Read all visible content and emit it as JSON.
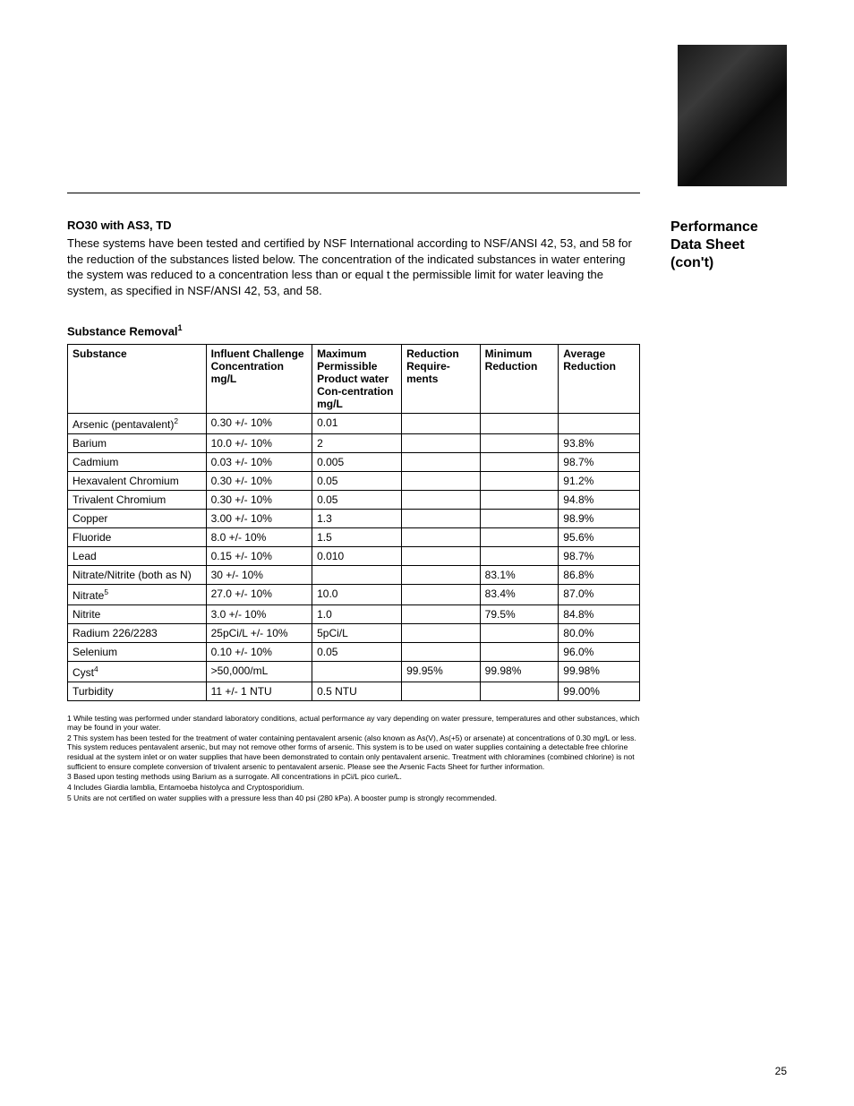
{
  "sidebar": {
    "title_line1": "Performance",
    "title_line2": "Data Sheet",
    "title_line3": "(con't)"
  },
  "main": {
    "section_title": "RO30 with AS3, TD",
    "intro": "These systems have been tested and certified by NSF International according to NSF/ANSI 42, 53, and 58 for the reduction of the substances listed below. The concentration of the indicated substances in water entering the system was reduced to a concentration less than or equal t the permissible limit for water leaving the system, as specified in NSF/ANSI 42, 53, and 58.",
    "table_title": "Substance Removal",
    "table_title_sup": "1",
    "columns": {
      "substance": "Substance",
      "influent": "Influent Challenge Concentration mg/L",
      "maximum": "Maximum Permissible Product water Con-centration mg/L",
      "reduction_req": "Reduction Require-ments",
      "minimum": "Minimum Reduction",
      "average": "Average Reduction"
    },
    "rows": [
      {
        "substance": "Arsenic (pentavalent)",
        "sup": "2",
        "influent": "0.30 +/- 10%",
        "maximum": "0.01",
        "reduction_req": "",
        "minimum": "",
        "average": ""
      },
      {
        "substance": "Barium",
        "sup": "",
        "influent": "10.0 +/- 10%",
        "maximum": "2",
        "reduction_req": "",
        "minimum": "",
        "average": "93.8%"
      },
      {
        "substance": "Cadmium",
        "sup": "",
        "influent": "0.03 +/- 10%",
        "maximum": "0.005",
        "reduction_req": "",
        "minimum": "",
        "average": "98.7%"
      },
      {
        "substance": "Hexavalent Chromium",
        "sup": "",
        "influent": "0.30 +/- 10%",
        "maximum": "0.05",
        "reduction_req": "",
        "minimum": "",
        "average": "91.2%"
      },
      {
        "substance": "Trivalent Chromium",
        "sup": "",
        "influent": "0.30 +/- 10%",
        "maximum": "0.05",
        "reduction_req": "",
        "minimum": "",
        "average": "94.8%"
      },
      {
        "substance": "Copper",
        "sup": "",
        "influent": "3.00 +/- 10%",
        "maximum": "1.3",
        "reduction_req": "",
        "minimum": "",
        "average": "98.9%"
      },
      {
        "substance": "Fluoride",
        "sup": "",
        "influent": "8.0 +/- 10%",
        "maximum": "1.5",
        "reduction_req": "",
        "minimum": "",
        "average": "95.6%"
      },
      {
        "substance": "Lead",
        "sup": "",
        "influent": "0.15 +/- 10%",
        "maximum": "0.010",
        "reduction_req": "",
        "minimum": "",
        "average": "98.7%"
      },
      {
        "substance": "Nitrate/Nitrite (both as N)",
        "sup": "",
        "influent": "30 +/- 10%",
        "maximum": "",
        "reduction_req": "",
        "minimum": "83.1%",
        "average": "86.8%"
      },
      {
        "substance": "Nitrate",
        "sup": "5",
        "influent": "27.0 +/- 10%",
        "maximum": "10.0",
        "reduction_req": "",
        "minimum": "83.4%",
        "average": "87.0%"
      },
      {
        "substance": "Nitrite",
        "sup": "",
        "influent": "3.0 +/- 10%",
        "maximum": "1.0",
        "reduction_req": "",
        "minimum": "79.5%",
        "average": "84.8%"
      },
      {
        "substance": "Radium 226/2283",
        "sup": "",
        "influent": "25pCi/L +/- 10%",
        "maximum": "5pCi/L",
        "reduction_req": "",
        "minimum": "",
        "average": "80.0%"
      },
      {
        "substance": "Selenium",
        "sup": "",
        "influent": "0.10 +/- 10%",
        "maximum": "0.05",
        "reduction_req": "",
        "minimum": "",
        "average": "96.0%"
      },
      {
        "substance": "Cyst",
        "sup": "4",
        "influent": ">50,000/mL",
        "maximum": "",
        "reduction_req": "99.95%",
        "minimum": "99.98%",
        "average": "99.98%"
      },
      {
        "substance": "Turbidity",
        "sup": "",
        "influent": "11 +/- 1 NTU",
        "maximum": "0.5 NTU",
        "reduction_req": "",
        "minimum": "",
        "average": "99.00%"
      }
    ],
    "footnotes": [
      "1 While testing was performed under standard laboratory conditions, actual performance ay vary depending on water pressure, temperatures and other substances, which may be found in your water.",
      "2 This system has been tested for the treatment of water containing pentavalent arsenic (also known as As(V), As(+5) or arsenate) at concentrations of 0.30 mg/L or less.  This system reduces pentavalent arsenic, but may not remove other forms of arsenic.  This system is to be used on water supplies containing a detectable free chlorine residual at the system inlet or on water supplies that have been demonstrated to contain only pentavalent arsenic.  Treatment with chloramines (combined chlorine) is not sufficient to ensure complete conversion of trivalent arsenic to pentavalent arsenic.  Please see the Arsenic Facts Sheet for further information.",
      "3 Based upon testing methods using Barium as a surrogate.  All concentrations in pCi/L pico curie/L.",
      "4 Includes Giardia lamblia, Entamoeba histolyca and Cryptosporidium.",
      "5 Units are not certified on water supplies with a pressure less than 40 psi (280 kPa).  A booster pump is strongly recommended."
    ]
  },
  "page_number": "25"
}
